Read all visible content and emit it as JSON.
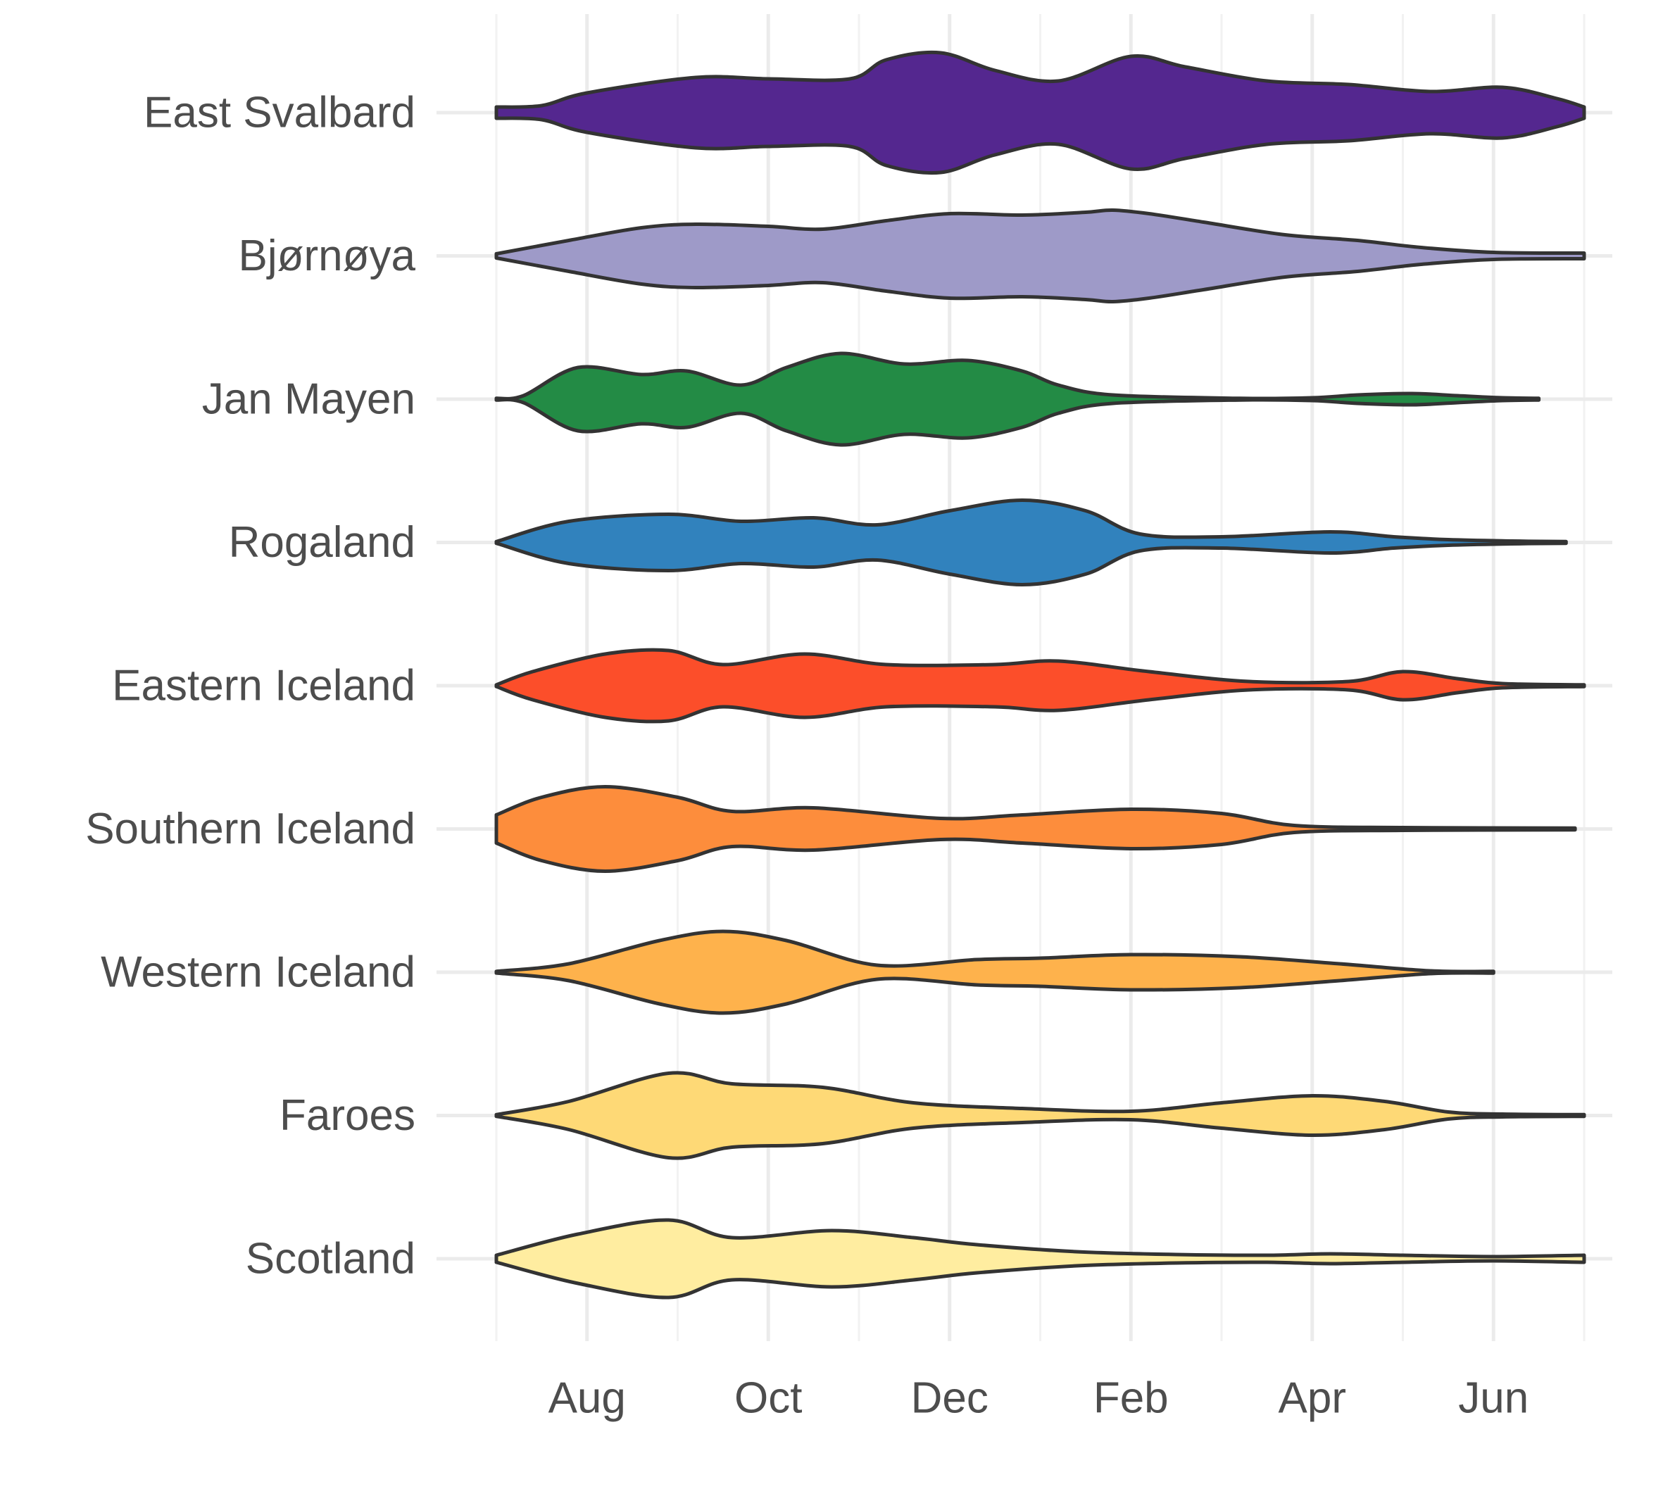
{
  "chart_data": {
    "type": "violin",
    "orientation": "horizontal",
    "title": "",
    "xlabel": "",
    "ylabel": "",
    "x_axis": {
      "ticks": [
        "Aug",
        "Oct",
        "Dec",
        "Feb",
        "Apr",
        "Jun"
      ],
      "range_months_since_jul1": [
        0,
        12
      ],
      "grid": true
    },
    "categories": [
      "East Svalbard",
      "Bjørnøya",
      "Jan Mayen",
      "Rogaland",
      "Eastern Iceland",
      "Southern Iceland",
      "Western Iceland",
      "Faroes",
      "Scotland"
    ],
    "series": [
      {
        "name": "East Svalbard",
        "color": "#54278f",
        "profile": [
          [
            0,
            0.08
          ],
          [
            0.5,
            0.1
          ],
          [
            1,
            0.28
          ],
          [
            2.2,
            0.5
          ],
          [
            3,
            0.48
          ],
          [
            3.9,
            0.48
          ],
          [
            4.3,
            0.75
          ],
          [
            4.9,
            0.85
          ],
          [
            5.5,
            0.6
          ],
          [
            6.2,
            0.45
          ],
          [
            7,
            0.8
          ],
          [
            7.6,
            0.65
          ],
          [
            8.5,
            0.45
          ],
          [
            9.4,
            0.4
          ],
          [
            10.3,
            0.3
          ],
          [
            11.1,
            0.36
          ],
          [
            11.7,
            0.2
          ],
          [
            12,
            0.08
          ]
        ]
      },
      {
        "name": "Bjørnøya",
        "color": "#9e9ac8",
        "profile": [
          [
            0,
            0.03
          ],
          [
            0.8,
            0.22
          ],
          [
            1.6,
            0.4
          ],
          [
            2.2,
            0.45
          ],
          [
            3,
            0.42
          ],
          [
            3.6,
            0.38
          ],
          [
            4.3,
            0.5
          ],
          [
            5,
            0.6
          ],
          [
            5.8,
            0.58
          ],
          [
            6.5,
            0.62
          ],
          [
            6.8,
            0.65
          ],
          [
            7.2,
            0.6
          ],
          [
            7.8,
            0.48
          ],
          [
            8.7,
            0.3
          ],
          [
            9.5,
            0.22
          ],
          [
            10.2,
            0.12
          ],
          [
            11,
            0.05
          ],
          [
            12,
            0.04
          ]
        ]
      },
      {
        "name": "Jan Mayen",
        "color": "#238b45",
        "profile": [
          [
            0,
            0.0
          ],
          [
            0.3,
            0.05
          ],
          [
            0.9,
            0.45
          ],
          [
            1.6,
            0.35
          ],
          [
            2.1,
            0.4
          ],
          [
            2.7,
            0.2
          ],
          [
            3.2,
            0.45
          ],
          [
            3.8,
            0.65
          ],
          [
            4.5,
            0.5
          ],
          [
            5.2,
            0.55
          ],
          [
            5.8,
            0.4
          ],
          [
            6.2,
            0.2
          ],
          [
            6.8,
            0.06
          ],
          [
            8.2,
            0.01
          ],
          [
            9,
            0.02
          ],
          [
            9.5,
            0.06
          ],
          [
            10.1,
            0.08
          ],
          [
            10.6,
            0.05
          ],
          [
            11.1,
            0.02
          ],
          [
            11.5,
            0.0
          ]
        ]
      },
      {
        "name": "Rogaland",
        "color": "#3182bd",
        "profile": [
          [
            0,
            0.0
          ],
          [
            0.8,
            0.3
          ],
          [
            1.9,
            0.4
          ],
          [
            2.7,
            0.3
          ],
          [
            3.5,
            0.35
          ],
          [
            4.2,
            0.25
          ],
          [
            5,
            0.45
          ],
          [
            5.8,
            0.6
          ],
          [
            6.5,
            0.45
          ],
          [
            7.1,
            0.12
          ],
          [
            8,
            0.08
          ],
          [
            9.2,
            0.15
          ],
          [
            9.9,
            0.08
          ],
          [
            10.5,
            0.04
          ],
          [
            11.2,
            0.02
          ],
          [
            11.8,
            0.0
          ]
        ]
      },
      {
        "name": "Eastern Iceland",
        "color": "#fc4e2a",
        "profile": [
          [
            0,
            0.0
          ],
          [
            0.4,
            0.2
          ],
          [
            1.2,
            0.45
          ],
          [
            1.9,
            0.5
          ],
          [
            2.5,
            0.3
          ],
          [
            3.4,
            0.45
          ],
          [
            4.3,
            0.3
          ],
          [
            5.5,
            0.3
          ],
          [
            6.2,
            0.35
          ],
          [
            7.2,
            0.2
          ],
          [
            8.3,
            0.06
          ],
          [
            9.4,
            0.06
          ],
          [
            10,
            0.2
          ],
          [
            10.6,
            0.1
          ],
          [
            11.1,
            0.03
          ],
          [
            12,
            0.0
          ]
        ]
      },
      {
        "name": "Southern Iceland",
        "color": "#fd8d3c",
        "profile": [
          [
            0,
            0.2
          ],
          [
            0.5,
            0.45
          ],
          [
            1.2,
            0.6
          ],
          [
            2,
            0.45
          ],
          [
            2.6,
            0.25
          ],
          [
            3.5,
            0.3
          ],
          [
            4.9,
            0.15
          ],
          [
            5.8,
            0.2
          ],
          [
            7,
            0.28
          ],
          [
            8,
            0.22
          ],
          [
            8.8,
            0.05
          ],
          [
            10,
            0.02
          ],
          [
            11.9,
            0.0
          ]
        ]
      },
      {
        "name": "Western Iceland",
        "color": "#feb24c",
        "profile": [
          [
            0,
            0.0
          ],
          [
            0.8,
            0.12
          ],
          [
            1.8,
            0.45
          ],
          [
            2.5,
            0.58
          ],
          [
            3.2,
            0.45
          ],
          [
            4.2,
            0.1
          ],
          [
            5.3,
            0.18
          ],
          [
            6,
            0.2
          ],
          [
            7,
            0.25
          ],
          [
            8.2,
            0.22
          ],
          [
            9.3,
            0.12
          ],
          [
            10.3,
            0.02
          ],
          [
            11,
            0.0
          ]
        ]
      },
      {
        "name": "Faroes",
        "color": "#fed976",
        "profile": [
          [
            0,
            0.0
          ],
          [
            0.8,
            0.2
          ],
          [
            1.9,
            0.6
          ],
          [
            2.6,
            0.45
          ],
          [
            3.6,
            0.4
          ],
          [
            4.6,
            0.18
          ],
          [
            5.8,
            0.1
          ],
          [
            7,
            0.06
          ],
          [
            8,
            0.18
          ],
          [
            9,
            0.28
          ],
          [
            9.8,
            0.2
          ],
          [
            10.5,
            0.05
          ],
          [
            11.1,
            0.02
          ],
          [
            12,
            0.0
          ]
        ]
      },
      {
        "name": "Scotland",
        "color": "#ffeda0",
        "profile": [
          [
            0,
            0.05
          ],
          [
            0.9,
            0.35
          ],
          [
            1.9,
            0.55
          ],
          [
            2.6,
            0.3
          ],
          [
            3.7,
            0.4
          ],
          [
            4.6,
            0.3
          ],
          [
            5.3,
            0.2
          ],
          [
            6.4,
            0.1
          ],
          [
            7.5,
            0.06
          ],
          [
            8.5,
            0.05
          ],
          [
            9.2,
            0.07
          ],
          [
            10,
            0.05
          ],
          [
            11,
            0.03
          ],
          [
            12,
            0.05
          ]
        ]
      }
    ]
  }
}
